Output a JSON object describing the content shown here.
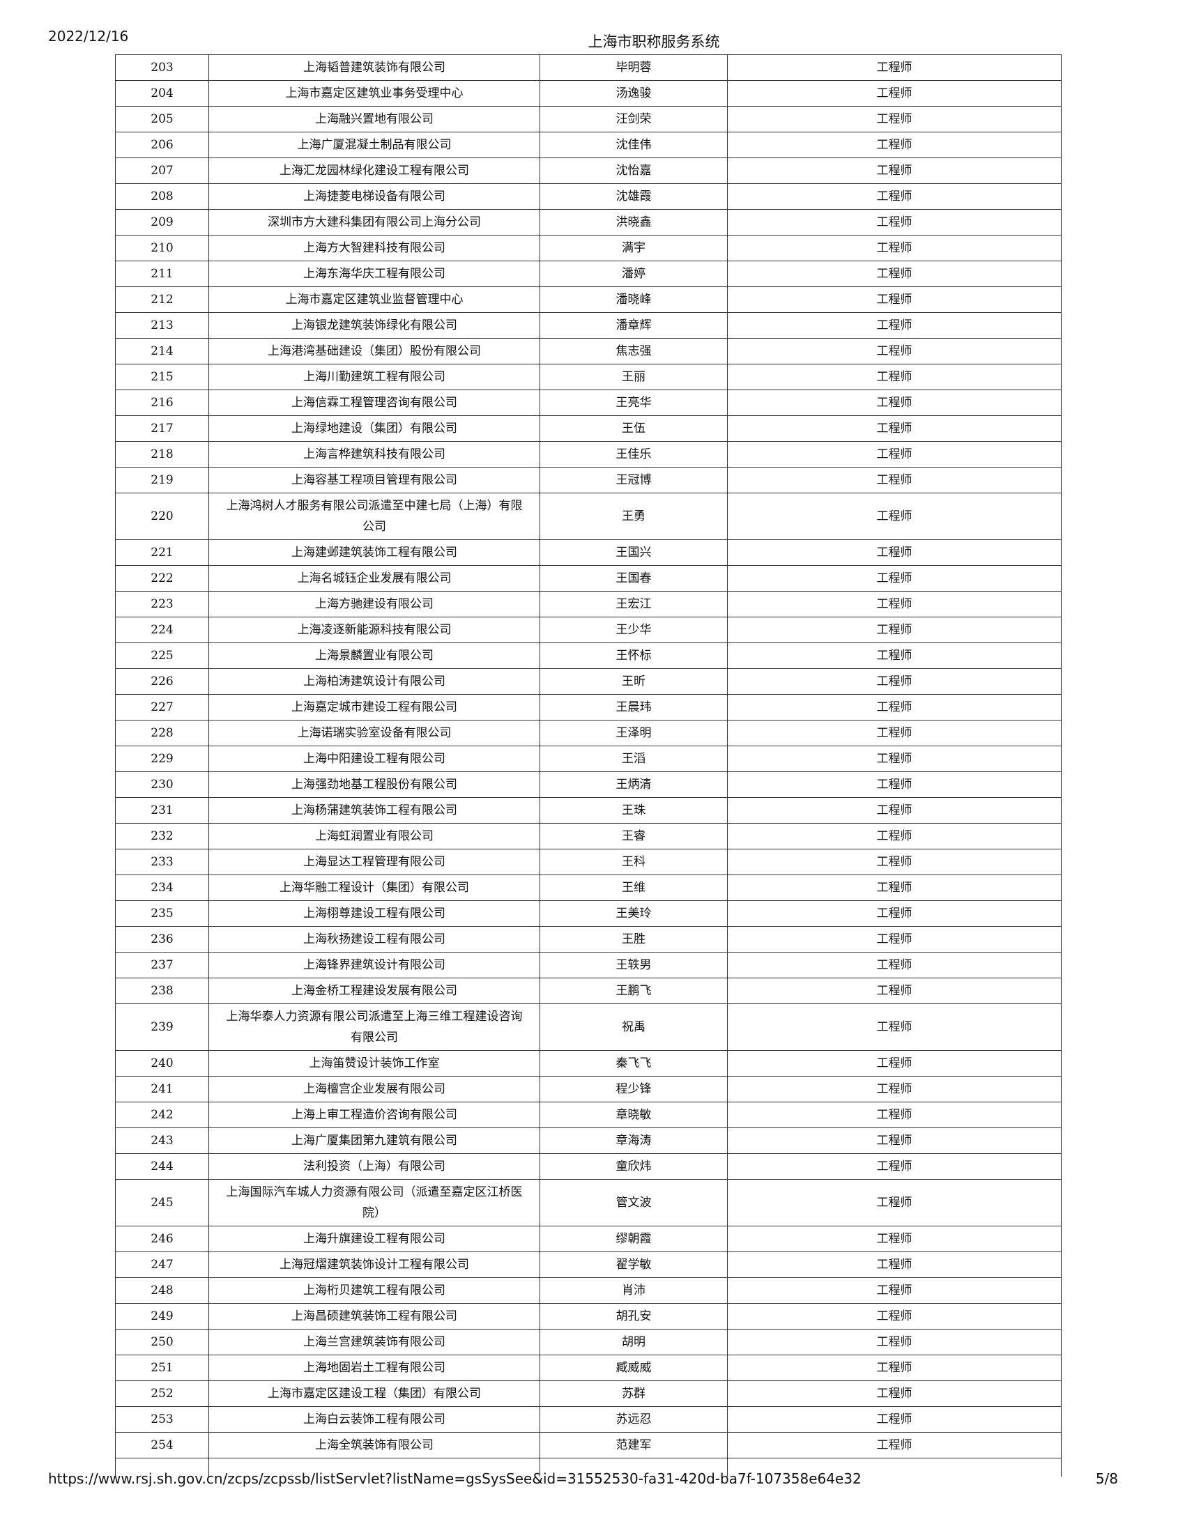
{
  "header": {
    "date": "2022/12/16",
    "title": "上海市职称服务系统"
  },
  "table": {
    "rows": [
      [
        203,
        "上海韬普建筑装饰有限公司",
        "毕明蓉",
        "工程师"
      ],
      [
        204,
        "上海市嘉定区建筑业事务受理中心",
        "汤逸骏",
        "工程师"
      ],
      [
        205,
        "上海融兴置地有限公司",
        "汪剑荣",
        "工程师"
      ],
      [
        206,
        "上海广厦混凝土制品有限公司",
        "沈佳伟",
        "工程师"
      ],
      [
        207,
        "上海汇龙园林绿化建设工程有限公司",
        "沈怡嘉",
        "工程师"
      ],
      [
        208,
        "上海捷菱电梯设备有限公司",
        "沈雄霞",
        "工程师"
      ],
      [
        209,
        "深圳市方大建科集团有限公司上海分公司",
        "洪晓鑫",
        "工程师"
      ],
      [
        210,
        "上海方大智建科技有限公司",
        "满宇",
        "工程师"
      ],
      [
        211,
        "上海东海华庆工程有限公司",
        "潘婷",
        "工程师"
      ],
      [
        212,
        "上海市嘉定区建筑业监督管理中心",
        "潘晓峰",
        "工程师"
      ],
      [
        213,
        "上海银龙建筑装饰绿化有限公司",
        "潘章辉",
        "工程师"
      ],
      [
        214,
        "上海港湾基础建设（集团）股份有限公司",
        "焦志强",
        "工程师"
      ],
      [
        215,
        "上海川勤建筑工程有限公司",
        "王丽",
        "工程师"
      ],
      [
        216,
        "上海信霖工程管理咨询有限公司",
        "王亮华",
        "工程师"
      ],
      [
        217,
        "上海绿地建设（集团）有限公司",
        "王伍",
        "工程师"
      ],
      [
        218,
        "上海言桦建筑科技有限公司",
        "王佳乐",
        "工程师"
      ],
      [
        219,
        "上海容基工程项目管理有限公司",
        "王冠博",
        "工程师"
      ],
      [
        220,
        "上海鸿树人才服务有限公司派遣至中建七局（上海）有限公司",
        "王勇",
        "工程师"
      ],
      [
        221,
        "上海建邺建筑装饰工程有限公司",
        "王国兴",
        "工程师"
      ],
      [
        222,
        "上海名城钰企业发展有限公司",
        "王国春",
        "工程师"
      ],
      [
        223,
        "上海方驰建设有限公司",
        "王宏江",
        "工程师"
      ],
      [
        224,
        "上海凌逐新能源科技有限公司",
        "王少华",
        "工程师"
      ],
      [
        225,
        "上海景麟置业有限公司",
        "王怀标",
        "工程师"
      ],
      [
        226,
        "上海柏涛建筑设计有限公司",
        "王昕",
        "工程师"
      ],
      [
        227,
        "上海嘉定城市建设工程有限公司",
        "王晨玮",
        "工程师"
      ],
      [
        228,
        "上海诺瑞实验室设备有限公司",
        "王泽明",
        "工程师"
      ],
      [
        229,
        "上海中阳建设工程有限公司",
        "王滔",
        "工程师"
      ],
      [
        230,
        "上海强劲地基工程股份有限公司",
        "王炳清",
        "工程师"
      ],
      [
        231,
        "上海杨蒲建筑装饰工程有限公司",
        "王珠",
        "工程师"
      ],
      [
        232,
        "上海虹润置业有限公司",
        "王睿",
        "工程师"
      ],
      [
        233,
        "上海显达工程管理有限公司",
        "王科",
        "工程师"
      ],
      [
        234,
        "上海华融工程设计（集团）有限公司",
        "王维",
        "工程师"
      ],
      [
        235,
        "上海栩尊建设工程有限公司",
        "王美玲",
        "工程师"
      ],
      [
        236,
        "上海秋扬建设工程有限公司",
        "王胜",
        "工程师"
      ],
      [
        237,
        "上海锋界建筑设计有限公司",
        "王轶男",
        "工程师"
      ],
      [
        238,
        "上海金桥工程建设发展有限公司",
        "王鹏飞",
        "工程师"
      ],
      [
        239,
        "上海华泰人力资源有限公司派遣至上海三维工程建设咨询有限公司",
        "祝禹",
        "工程师"
      ],
      [
        240,
        "上海笛赞设计装饰工作室",
        "秦飞飞",
        "工程师"
      ],
      [
        241,
        "上海檀宫企业发展有限公司",
        "程少锋",
        "工程师"
      ],
      [
        242,
        "上海上审工程造价咨询有限公司",
        "章晓敏",
        "工程师"
      ],
      [
        243,
        "上海广厦集团第九建筑有限公司",
        "章海涛",
        "工程师"
      ],
      [
        244,
        "法利投资（上海）有限公司",
        "童欣炜",
        "工程师"
      ],
      [
        245,
        "上海国际汽车城人力资源有限公司（派遣至嘉定区江桥医院）",
        "管文波",
        "工程师"
      ],
      [
        246,
        "上海升旗建设工程有限公司",
        "缪朝霞",
        "工程师"
      ],
      [
        247,
        "上海冠熠建筑装饰设计工程有限公司",
        "翟学敏",
        "工程师"
      ],
      [
        248,
        "上海桁贝建筑工程有限公司",
        "肖沛",
        "工程师"
      ],
      [
        249,
        "上海昌硕建筑装饰工程有限公司",
        "胡孔安",
        "工程师"
      ],
      [
        250,
        "上海兰宫建筑装饰有限公司",
        "胡明",
        "工程师"
      ],
      [
        251,
        "上海地固岩土工程有限公司",
        "臧威威",
        "工程师"
      ],
      [
        252,
        "上海市嘉定区建设工程（集团）有限公司",
        "苏群",
        "工程师"
      ],
      [
        253,
        "上海白云装饰工程有限公司",
        "苏远忍",
        "工程师"
      ],
      [
        254,
        "上海全筑装饰有限公司",
        "范建军",
        "工程师"
      ]
    ]
  },
  "footer": {
    "url": "https://www.rsj.sh.gov.cn/zcps/zcpssb/listServlet?listName=gsSysSee&id=31552530-fa31-420d-ba7f-107358e64e32",
    "page": "5/8"
  }
}
